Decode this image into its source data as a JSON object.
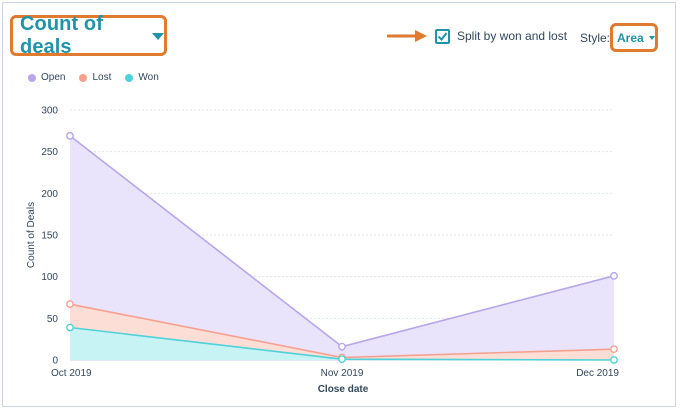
{
  "header": {
    "title": "Count of deals",
    "split_checkbox_label": "Split by won and lost",
    "split_checked": true,
    "style_label": "Style:",
    "style_value": "Area"
  },
  "colors": {
    "accent": "#1f93a8",
    "highlight_border": "#e07a2f",
    "open": "#b8a6e8",
    "lost": "#f5a08f",
    "won": "#4fd1d9"
  },
  "chart_data": {
    "type": "area",
    "xlabel": "Close date",
    "ylabel": "Count of Deals",
    "categories": [
      "Oct 2019",
      "Nov 2019",
      "Dec 2019"
    ],
    "ylim": [
      0,
      300
    ],
    "yticks": [
      0,
      50,
      100,
      150,
      200,
      250,
      300
    ],
    "grid": true,
    "legend_position": "top-left",
    "series": [
      {
        "name": "Open",
        "values": [
          269,
          16,
          101
        ]
      },
      {
        "name": "Lost",
        "values": [
          67,
          3,
          13
        ]
      },
      {
        "name": "Won",
        "values": [
          39,
          1,
          0
        ]
      }
    ]
  }
}
